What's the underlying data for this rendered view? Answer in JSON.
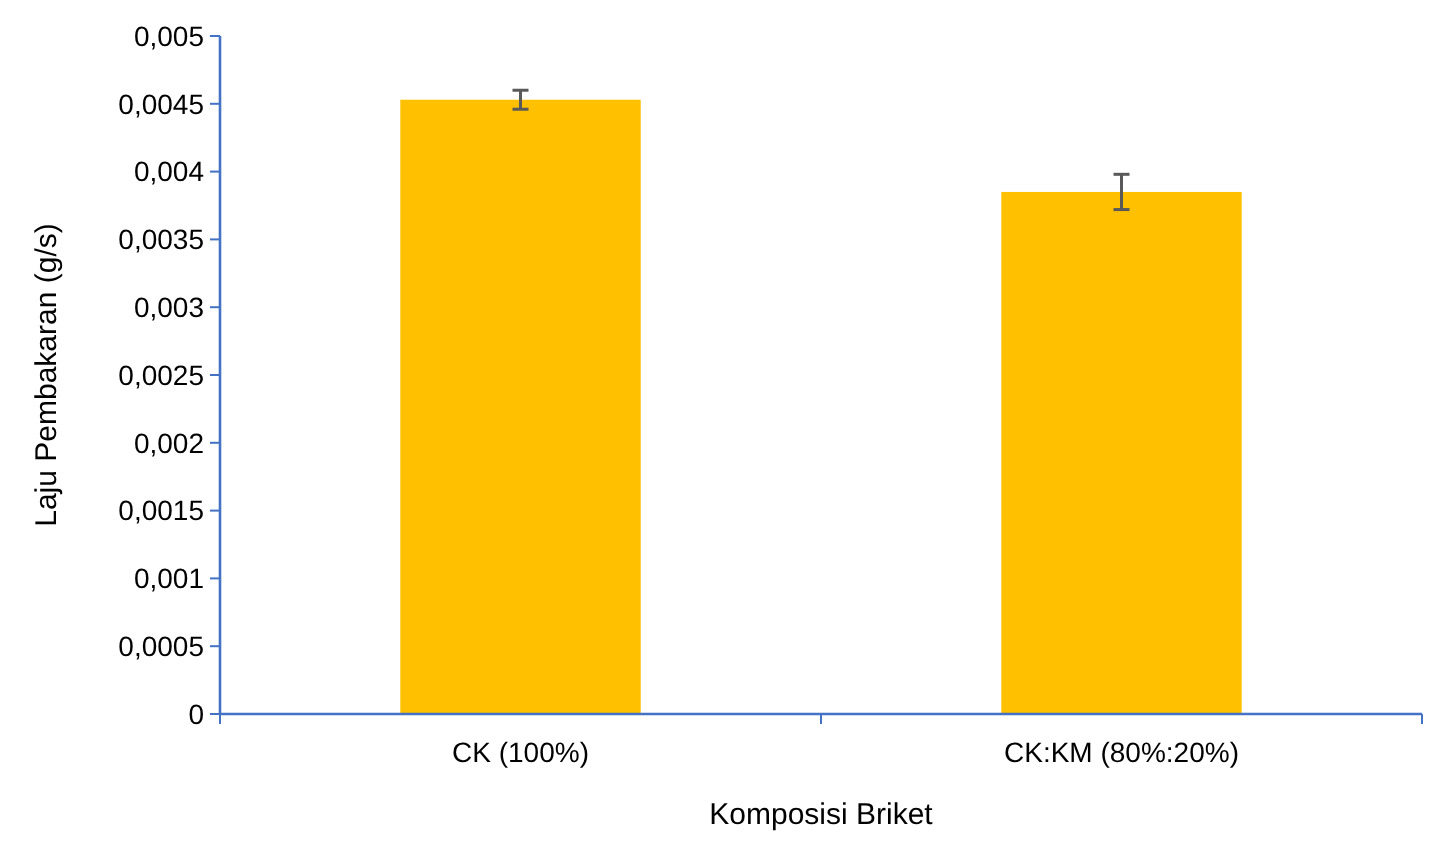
{
  "chart_data": {
    "type": "bar",
    "xlabel": "Komposisi Briket",
    "ylabel": "Laju Pembakaran (g/s)",
    "categories": [
      "CK (100%)",
      "CK:KM (80%:20%)"
    ],
    "values": [
      0.00453,
      0.00385
    ],
    "errors": [
      7e-05,
      0.00013
    ],
    "color": "#ffc000",
    "ylim": [
      0,
      0.005
    ],
    "yticks": [
      {
        "value": 0,
        "label": "0"
      },
      {
        "value": 0.0005,
        "label": "0,0005"
      },
      {
        "value": 0.001,
        "label": "0,001"
      },
      {
        "value": 0.0015,
        "label": "0,0015"
      },
      {
        "value": 0.002,
        "label": "0,002"
      },
      {
        "value": 0.0025,
        "label": "0,0025"
      },
      {
        "value": 0.003,
        "label": "0,003"
      },
      {
        "value": 0.0035,
        "label": "0,0035"
      },
      {
        "value": 0.004,
        "label": "0,004"
      },
      {
        "value": 0.0045,
        "label": "0,0045"
      },
      {
        "value": 0.005,
        "label": "0,005"
      }
    ],
    "grid": false
  }
}
